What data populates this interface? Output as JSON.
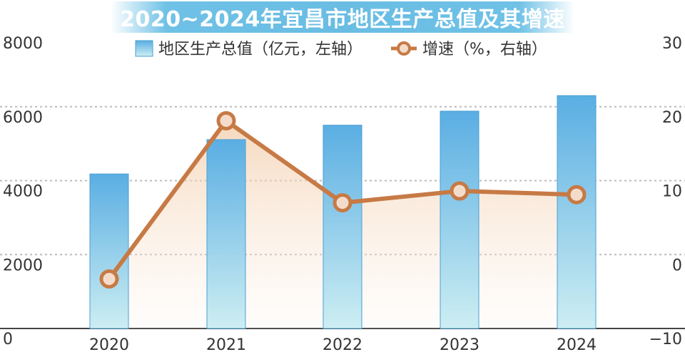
{
  "chart_data": {
    "type": "bar",
    "title": "2020~2024年宜昌市地区生产总值及其增速",
    "categories": [
      "2020",
      "2021",
      "2022",
      "2023",
      "2024"
    ],
    "series": [
      {
        "name": "地区生产总值（亿元，左轴）",
        "kind": "bar",
        "axis": "left",
        "values": [
          4180,
          5110,
          5500,
          5880,
          6300
        ]
      },
      {
        "name": "增速（%，右轴）",
        "kind": "line",
        "axis": "right",
        "values": [
          -3.3,
          18.1,
          7.0,
          8.6,
          8.1
        ]
      }
    ],
    "y_left": {
      "range": [
        0,
        8000
      ],
      "ticks": [
        "0",
        "2000",
        "4000",
        "6000",
        "8000"
      ]
    },
    "y_right": {
      "range": [
        -10,
        30
      ],
      "ticks": [
        "−10",
        "0",
        "10",
        "20",
        "30"
      ]
    },
    "grid": true,
    "legend_position": "top-center",
    "colors": {
      "bar_top": "#5aaee3",
      "bar_bottom": "#cdeef2",
      "line": "#c77a45",
      "marker_fill": "#f4dccb",
      "area_top": "#f2cba7",
      "grid": "#bbbbbb",
      "banner": "#6fc1e6"
    }
  }
}
